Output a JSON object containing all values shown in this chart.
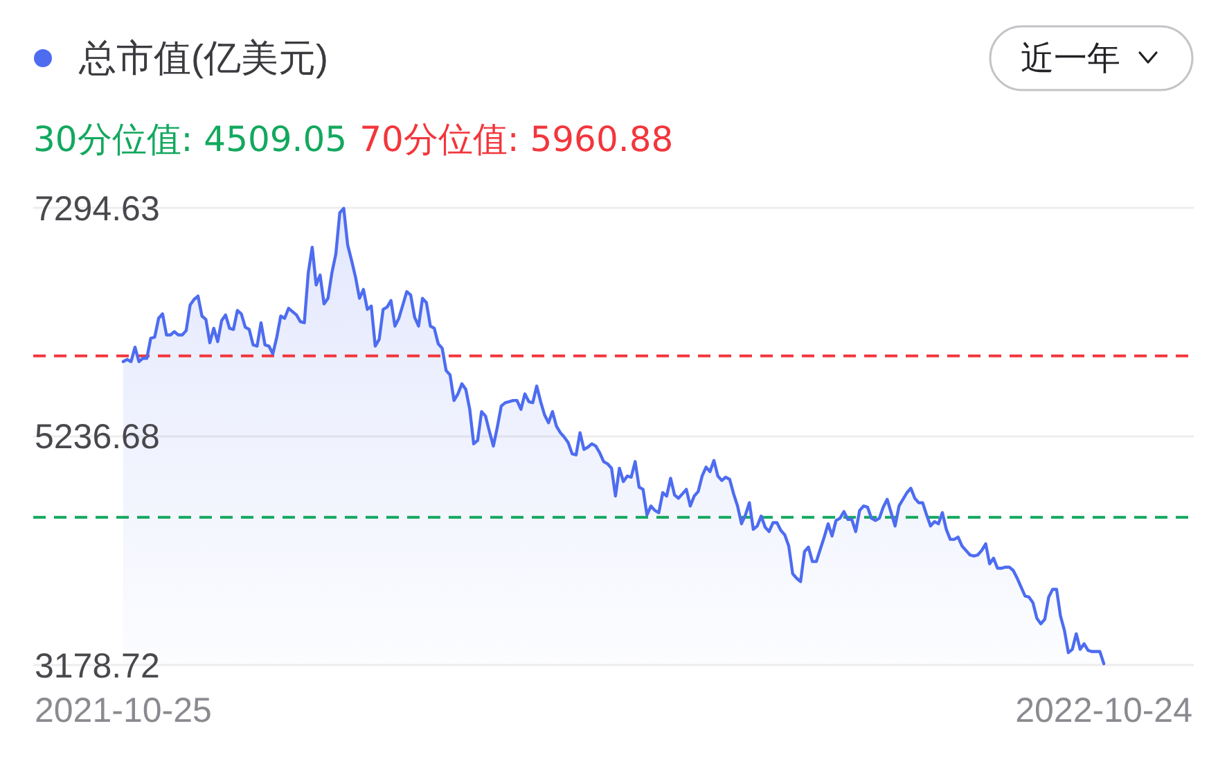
{
  "chart_data": {
    "type": "area",
    "categories": [
      "2021-10-25",
      null,
      null,
      null,
      null,
      null,
      null,
      null,
      null,
      null,
      null,
      null,
      null,
      null,
      null,
      null,
      null,
      null,
      null,
      null,
      null,
      null,
      null,
      null,
      null,
      null,
      null,
      null,
      null,
      null,
      null,
      null,
      null,
      null,
      null,
      null,
      null,
      null,
      null,
      null,
      null,
      null,
      null,
      null,
      null,
      null,
      null,
      null,
      null,
      null,
      null,
      null,
      null,
      null,
      null,
      null,
      null,
      null,
      null,
      null,
      null,
      null,
      null,
      null,
      null,
      null,
      null,
      null,
      null,
      null,
      null,
      null,
      null,
      null,
      null,
      null,
      null,
      null,
      null,
      null,
      null,
      null,
      null,
      null,
      null,
      null,
      null,
      null,
      null,
      null,
      null,
      null,
      null,
      null,
      null,
      null,
      null,
      null,
      null,
      null,
      null,
      null,
      null,
      null,
      null,
      null,
      null,
      null,
      null,
      null,
      null,
      null,
      null,
      null,
      null,
      null,
      null,
      null,
      null,
      null,
      null,
      null,
      null,
      null,
      null,
      null,
      null,
      null,
      null,
      null,
      null,
      null,
      null,
      null,
      null,
      null,
      null,
      null,
      null,
      null,
      null,
      null,
      null,
      null,
      null,
      null,
      null,
      null,
      null,
      null,
      null,
      null,
      null,
      null,
      null,
      null,
      null,
      null,
      null,
      null,
      null,
      null,
      null,
      null,
      null,
      null,
      null,
      null,
      null,
      null,
      null,
      null,
      null,
      null,
      null,
      null,
      null,
      null,
      null,
      null,
      null,
      null,
      null,
      null,
      null,
      null,
      null,
      null,
      null,
      null,
      null,
      null,
      null,
      null,
      null,
      null,
      null,
      null,
      null,
      null,
      null,
      null,
      null,
      null,
      null,
      null,
      null,
      null,
      null,
      null,
      null,
      null,
      null,
      null,
      null,
      null,
      null,
      null,
      null,
      null,
      null,
      null,
      null,
      null,
      null,
      null,
      null,
      null,
      null,
      null,
      null,
      null,
      null,
      null,
      null,
      null,
      null,
      null,
      null,
      null,
      null,
      null,
      null,
      null,
      null,
      null,
      null,
      null,
      null,
      "2022-10-24"
    ],
    "series": [
      {
        "name": "总市值(亿美元)",
        "color": "#4d6cf0",
        "values": [
          5910,
          5930,
          5910,
          6040,
          5910,
          5940,
          5940,
          6120,
          6130,
          6300,
          6340,
          6150,
          6150,
          6180,
          6150,
          6150,
          6190,
          6420,
          6470,
          6500,
          6320,
          6290,
          6080,
          6210,
          6090,
          6280,
          6330,
          6210,
          6200,
          6370,
          6340,
          6220,
          6200,
          6060,
          6050,
          6260,
          6060,
          6050,
          5980,
          6130,
          6320,
          6300,
          6390,
          6360,
          6330,
          6270,
          6260,
          6710,
          6940,
          6600,
          6690,
          6430,
          6480,
          6710,
          6880,
          7250,
          7290,
          6960,
          6820,
          6670,
          6480,
          6560,
          6380,
          6410,
          6050,
          6110,
          6380,
          6400,
          6460,
          6230,
          6300,
          6420,
          6540,
          6510,
          6310,
          6230,
          6480,
          6440,
          6230,
          6210,
          6070,
          6030,
          5830,
          5790,
          5560,
          5620,
          5710,
          5660,
          5480,
          5170,
          5200,
          5460,
          5420,
          5280,
          5150,
          5320,
          5510,
          5540,
          5550,
          5560,
          5560,
          5480,
          5620,
          5550,
          5540,
          5690,
          5550,
          5430,
          5360,
          5460,
          5330,
          5270,
          5230,
          5180,
          5080,
          5070,
          5270,
          5120,
          5140,
          5170,
          5150,
          5090,
          5010,
          4990,
          4950,
          4700,
          4950,
          4830,
          4880,
          4870,
          5010,
          4780,
          4760,
          4530,
          4610,
          4570,
          4550,
          4730,
          4700,
          4860,
          4710,
          4680,
          4720,
          4760,
          4610,
          4700,
          4740,
          4880,
          4960,
          4920,
          5020,
          4880,
          4840,
          4870,
          4850,
          4720,
          4610,
          4450,
          4530,
          4640,
          4400,
          4430,
          4520,
          4420,
          4380,
          4460,
          4460,
          4390,
          4350,
          4250,
          4000,
          3960,
          3930,
          4200,
          4240,
          4110,
          4110,
          4220,
          4330,
          4450,
          4340,
          4480,
          4500,
          4560,
          4490,
          4490,
          4380,
          4570,
          4610,
          4600,
          4500,
          4480,
          4500,
          4600,
          4670,
          4550,
          4430,
          4610,
          4670,
          4730,
          4770,
          4680,
          4640,
          4640,
          4530,
          4430,
          4470,
          4450,
          4550,
          4400,
          4310,
          4310,
          4330,
          4250,
          4210,
          4170,
          4160,
          4170,
          4210,
          4270,
          4090,
          4140,
          4050,
          4050,
          4060,
          4060,
          4030,
          3960,
          3880,
          3800,
          3790,
          3740,
          3600,
          3550,
          3590,
          3790,
          3860,
          3860,
          3620,
          3490,
          3290,
          3320,
          3460,
          3320,
          3370,
          3310,
          3300,
          3300,
          3300,
          3190
        ]
      }
    ],
    "ylim": [
      3178.72,
      7294.63
    ],
    "yticks": [
      3178.72,
      5236.68,
      7294.63
    ],
    "grid": "y",
    "legend": "top left",
    "ref_lines": [
      {
        "axis": "y",
        "value": 4509.05,
        "label": "30分位值: 4509.05",
        "color": "#13a85e",
        "line_style": "dashed"
      },
      {
        "axis": "y",
        "value": 5960.88,
        "label": "70分位值: 5960.88",
        "color": "#f2363c",
        "line_style": "dashed"
      }
    ],
    "annotations": [
      "近一年"
    ]
  }
}
